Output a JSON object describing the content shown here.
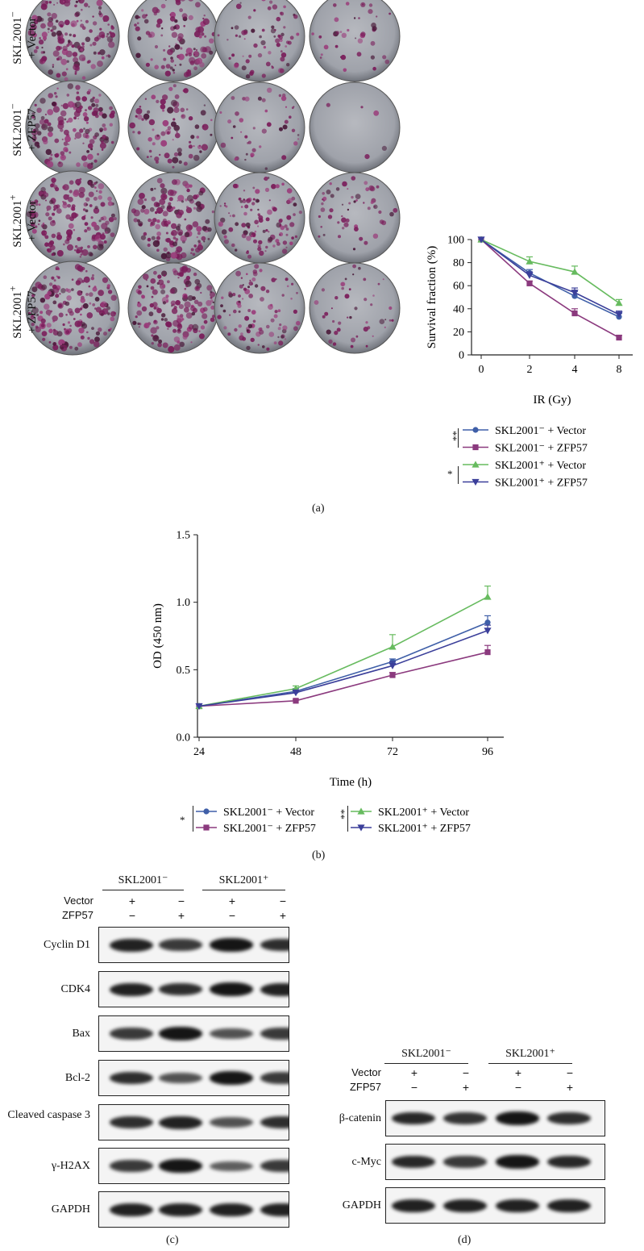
{
  "panel_a": {
    "caption": "(a)",
    "row_labels": [
      {
        "cell": "SKL2001",
        "sup": "−",
        "treat": "+ Vector"
      },
      {
        "cell": "SKL2001",
        "sup": "−",
        "treat": "+ ZFP57"
      },
      {
        "cell": "SKL2001",
        "sup": "+",
        "treat": "+ Vector"
      },
      {
        "cell": "SKL2001",
        "sup": "+",
        "treat": "+ ZFP57"
      }
    ],
    "significance": [
      "**",
      "*"
    ],
    "colors": {
      "blue": "#3f5fa8",
      "purple": "#8b3a7e",
      "green": "#67bb5f",
      "navy": "#3b3f9a"
    }
  },
  "panel_b": {
    "caption": "(b)",
    "significance": [
      "*",
      "**"
    ]
  },
  "chart_data": [
    {
      "type": "line",
      "xlabel": "IR (Gy)",
      "ylabel": "Survival fraction (%)",
      "x": [
        0,
        2,
        4,
        8
      ],
      "x_tick_labels": [
        "0",
        "2",
        "4",
        "8"
      ],
      "ylim": [
        0,
        100
      ],
      "y_ticks": [
        0,
        20,
        40,
        60,
        80,
        100
      ],
      "series": [
        {
          "name": "SKL2001⁻ + Vector",
          "marker": "circle",
          "color": "#3f5fa8",
          "values": [
            100,
            71,
            51,
            33
          ],
          "err": [
            0,
            3,
            4,
            3
          ]
        },
        {
          "name": "SKL2001⁻ + ZFP57",
          "marker": "square",
          "color": "#8b3a7e",
          "values": [
            100,
            62,
            36,
            15
          ],
          "err": [
            0,
            2,
            4,
            2
          ]
        },
        {
          "name": "SKL2001⁺ + Vector",
          "marker": "triangle",
          "color": "#67bb5f",
          "values": [
            100,
            81,
            72,
            45
          ],
          "err": [
            0,
            4,
            5,
            3
          ]
        },
        {
          "name": "SKL2001⁺ + ZFP57",
          "marker": "triangle-down",
          "color": "#3b3f9a",
          "values": [
            100,
            69,
            54,
            35
          ],
          "err": [
            0,
            3,
            4,
            3
          ]
        }
      ]
    },
    {
      "type": "line",
      "xlabel": "Time (h)",
      "ylabel": "OD (450 nm)",
      "x": [
        24,
        48,
        72,
        96
      ],
      "x_tick_labels": [
        "24",
        "48",
        "72",
        "96"
      ],
      "ylim": [
        0,
        1.5
      ],
      "y_ticks": [
        "0.0",
        "0.5",
        "1.0",
        "1.5"
      ],
      "series": [
        {
          "name": "SKL2001⁻ + Vector",
          "marker": "circle",
          "color": "#3f5fa8",
          "values": [
            0.23,
            0.34,
            0.56,
            0.85
          ],
          "err": [
            0,
            0.02,
            0.02,
            0.05
          ]
        },
        {
          "name": "SKL2001⁻ + ZFP57",
          "marker": "square",
          "color": "#8b3a7e",
          "values": [
            0.23,
            0.27,
            0.46,
            0.63
          ],
          "err": [
            0,
            0.01,
            0.02,
            0.05
          ]
        },
        {
          "name": "SKL2001⁺ + Vector",
          "marker": "triangle",
          "color": "#67bb5f",
          "values": [
            0.23,
            0.36,
            0.67,
            1.04
          ],
          "err": [
            0,
            0.02,
            0.09,
            0.08
          ]
        },
        {
          "name": "SKL2001⁺ + ZFP57",
          "marker": "triangle-down",
          "color": "#3b3f9a",
          "values": [
            0.23,
            0.33,
            0.53,
            0.79
          ],
          "err": [
            0,
            0.02,
            0.03,
            0.04
          ]
        }
      ]
    }
  ],
  "panel_c": {
    "caption": "(c)",
    "groups": [
      "SKL2001⁻",
      "SKL2001⁺"
    ],
    "control_rows": [
      {
        "label": "Vector",
        "signs": [
          "+",
          "−",
          "+",
          "−"
        ]
      },
      {
        "label": "ZFP57",
        "signs": [
          "−",
          "+",
          "−",
          "+"
        ]
      }
    ],
    "blots": [
      {
        "label": "Cyclin D1",
        "intensity": [
          0.9,
          0.7,
          1.0,
          0.8
        ]
      },
      {
        "label": "CDK4",
        "intensity": [
          0.9,
          0.8,
          1.0,
          0.9
        ]
      },
      {
        "label": "Bax",
        "intensity": [
          0.7,
          1.0,
          0.5,
          0.7
        ]
      },
      {
        "label": "Bcl-2",
        "intensity": [
          0.8,
          0.5,
          1.0,
          0.7
        ]
      },
      {
        "label": "Cleaved caspase 3",
        "intensity": [
          0.8,
          0.9,
          0.5,
          0.8
        ]
      },
      {
        "label": "γ-H2AX",
        "intensity": [
          0.7,
          1.0,
          0.4,
          0.7
        ]
      },
      {
        "label": "GAPDH",
        "intensity": [
          0.9,
          0.9,
          0.9,
          0.9
        ]
      }
    ]
  },
  "panel_d": {
    "caption": "(d)",
    "groups": [
      "SKL2001⁻",
      "SKL2001⁺"
    ],
    "control_rows": [
      {
        "label": "Vector",
        "signs": [
          "+",
          "−",
          "+",
          "−"
        ]
      },
      {
        "label": "ZFP57",
        "signs": [
          "−",
          "+",
          "−",
          "+"
        ]
      }
    ],
    "blots": [
      {
        "label": "β-catenin",
        "intensity": [
          0.85,
          0.75,
          1.0,
          0.8
        ]
      },
      {
        "label": "c-Myc",
        "intensity": [
          0.85,
          0.7,
          1.0,
          0.85
        ]
      },
      {
        "label": "GAPDH",
        "intensity": [
          0.9,
          0.9,
          0.9,
          0.9
        ]
      }
    ]
  }
}
